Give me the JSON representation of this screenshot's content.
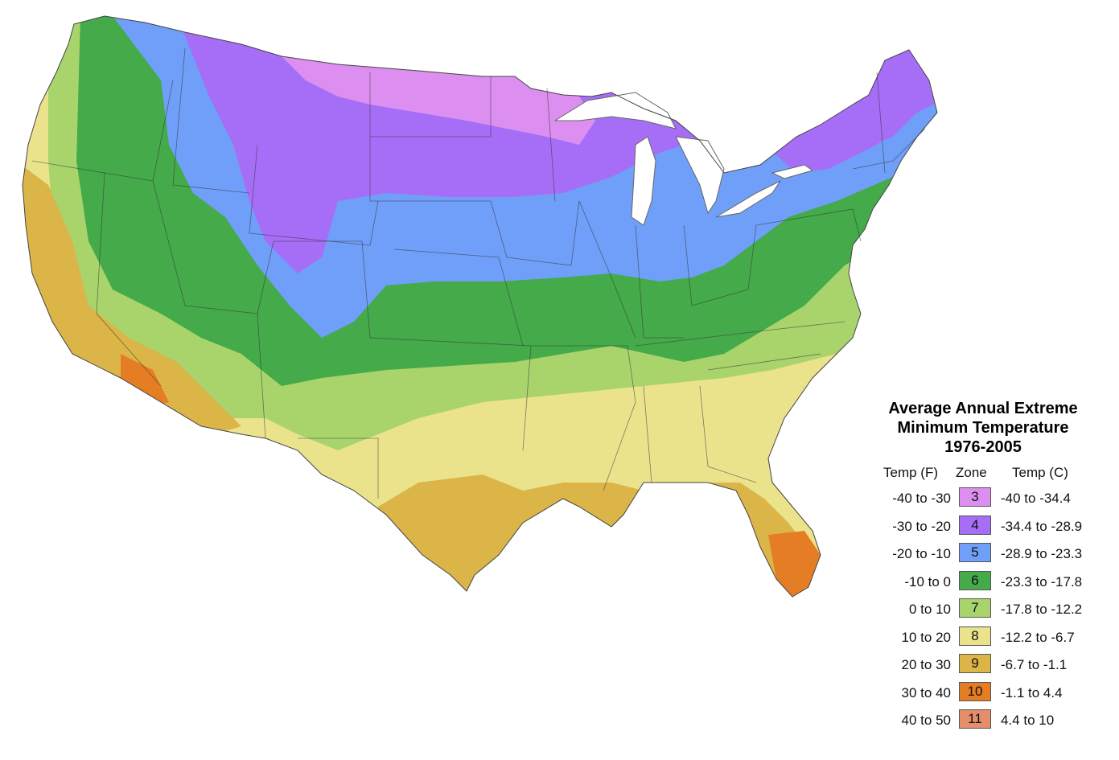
{
  "legend": {
    "title_lines": [
      "Average Annual Extreme",
      "Minimum Temperature",
      "1976-2005"
    ],
    "headers": {
      "temp_f": "Temp (F)",
      "zone": "Zone",
      "temp_c": "Temp (C)"
    },
    "zones": [
      {
        "temp_f": "-40 to -30",
        "zone": "3",
        "temp_c": "-40 to -34.4",
        "color": "#dc8ff0"
      },
      {
        "temp_f": "-30 to -20",
        "zone": "4",
        "temp_c": "-34.4 to -28.9",
        "color": "#a66ef7"
      },
      {
        "temp_f": "-20 to -10",
        "zone": "5",
        "temp_c": "-28.9 to -23.3",
        "color": "#6f9ff8"
      },
      {
        "temp_f": "-10 to 0",
        "zone": "6",
        "temp_c": "-23.3 to -17.8",
        "color": "#44aa4a"
      },
      {
        "temp_f": "0 to 10",
        "zone": "7",
        "temp_c": "-17.8 to -12.2",
        "color": "#a9d46c"
      },
      {
        "temp_f": "10 to 20",
        "zone": "8",
        "temp_c": "-12.2 to -6.7",
        "color": "#ebe38c"
      },
      {
        "temp_f": "20 to 30",
        "zone": "9",
        "temp_c": "-6.7 to -1.1",
        "color": "#dbb548"
      },
      {
        "temp_f": "30 to 40",
        "zone": "10",
        "temp_c": "-1.1 to 4.4",
        "color": "#e57d25"
      },
      {
        "temp_f": "40 to 50",
        "zone": "11",
        "temp_c": "4.4 to 10",
        "color": "#e68e6a"
      }
    ]
  }
}
